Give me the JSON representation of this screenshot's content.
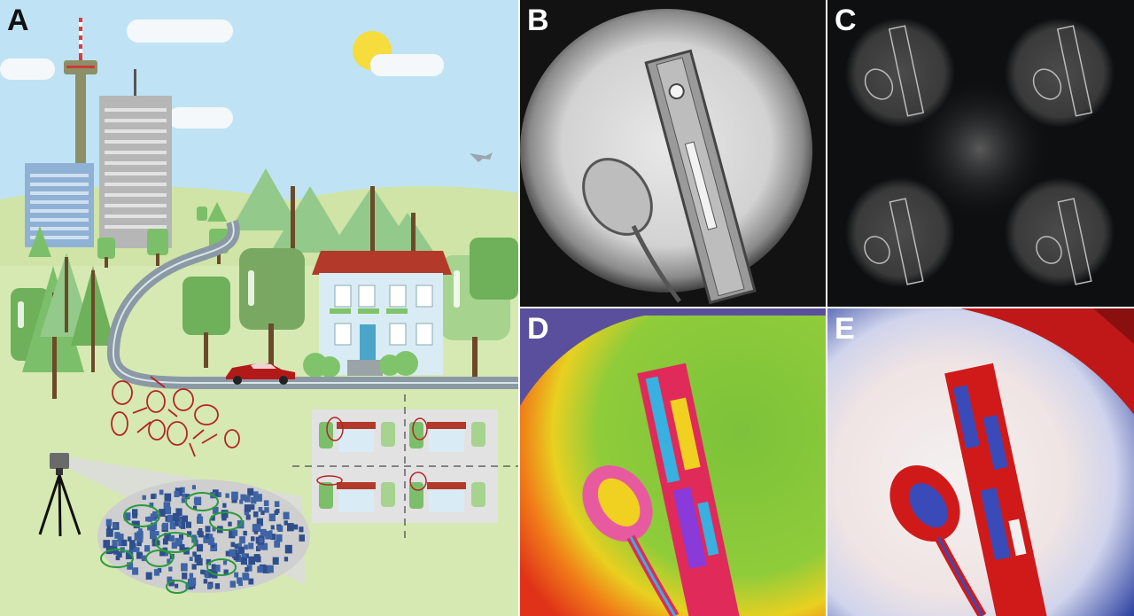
{
  "figure": {
    "panels": [
      {
        "id": "A",
        "label": "A",
        "description_hidden": true
      },
      {
        "id": "B",
        "label": "B"
      },
      {
        "id": "C",
        "label": "C"
      },
      {
        "id": "D",
        "label": "D"
      },
      {
        "id": "E",
        "label": "E"
      }
    ]
  },
  "colors": {
    "sky": "#bfe3f5",
    "grass": "#d4e8b0",
    "tree_green": "#6fb05a",
    "roof_red": "#b33a2a",
    "car_red": "#b21a1a",
    "camera_beam": "#dcdcdc",
    "panel_b_bg": "#121212",
    "panel_d_green": "#7cc23a",
    "panel_e_red": "#c01818",
    "panel_e_blue": "#2a3fa0"
  }
}
